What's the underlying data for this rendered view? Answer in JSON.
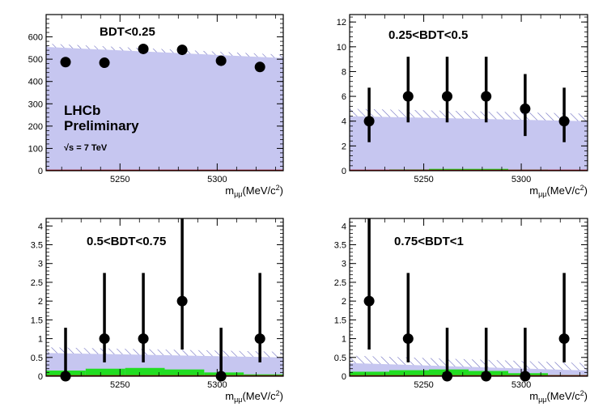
{
  "chart_data": [
    {
      "type": "scatter",
      "title": "BDT<0.25",
      "xlabel_main": "m",
      "xlabel_sub": "μμ",
      "xlabel_units": "(MeV/c",
      "xlabel_sup": "2",
      "xlabel_close": ")",
      "xlim": [
        5212,
        5334
      ],
      "ylim": [
        0,
        700
      ],
      "xticks": [
        5250,
        5300
      ],
      "yticks": [
        0,
        100,
        200,
        300,
        400,
        500,
        600
      ],
      "x": [
        5222,
        5242,
        5262,
        5282,
        5302,
        5322
      ],
      "y": [
        487,
        484,
        546,
        542,
        493,
        465
      ],
      "err_low": [
        0,
        0,
        0,
        0,
        0,
        0
      ],
      "err_high": [
        0,
        0,
        0,
        0,
        0,
        0
      ],
      "background_left": 555,
      "background_right": 505,
      "band_halfwidth": 15,
      "signal": [
        0,
        0,
        0,
        0,
        0,
        0
      ],
      "labels": {
        "experiment": "LHCb",
        "status": "Preliminary",
        "energy": "√s = 7 TeV"
      }
    },
    {
      "type": "scatter",
      "title": "0.25<BDT<0.5",
      "xlabel_main": "m",
      "xlabel_sub": "μμ",
      "xlabel_units": "(MeV/c",
      "xlabel_sup": "2",
      "xlabel_close": ")",
      "xlim": [
        5212,
        5334
      ],
      "ylim": [
        0,
        12.6
      ],
      "xticks": [
        5250,
        5300
      ],
      "yticks": [
        0,
        2,
        4,
        6,
        8,
        10,
        12
      ],
      "x": [
        5222,
        5242,
        5262,
        5282,
        5302,
        5322
      ],
      "y": [
        4,
        6,
        6,
        6,
        5,
        4
      ],
      "err_low": [
        1.7,
        2.1,
        2.1,
        2.1,
        2.2,
        1.7
      ],
      "err_high": [
        2.7,
        3.2,
        3.2,
        3.2,
        2.8,
        2.7
      ],
      "background_left": 4.4,
      "background_right": 4.0,
      "band_halfwidth": 0.6,
      "signal": [
        0.05,
        0.1,
        0.15,
        0.15,
        0.08,
        0.03
      ]
    },
    {
      "type": "scatter",
      "title": "0.5<BDT<0.75",
      "xlabel_main": "m",
      "xlabel_sub": "μμ",
      "xlabel_units": "(MeV/c",
      "xlabel_sup": "2",
      "xlabel_close": ")",
      "xlim": [
        5212,
        5334
      ],
      "ylim": [
        0,
        4.2
      ],
      "xticks": [
        5250,
        5300
      ],
      "yticks": [
        0,
        0.5,
        1,
        1.5,
        2,
        2.5,
        3,
        3.5,
        4
      ],
      "x": [
        5222,
        5242,
        5262,
        5282,
        5302,
        5322
      ],
      "y": [
        0,
        1,
        1,
        2,
        0,
        1
      ],
      "err_low": [
        0,
        0.63,
        0.63,
        1.29,
        0,
        0.63
      ],
      "err_high": [
        1.29,
        1.75,
        1.75,
        2.25,
        1.29,
        1.75
      ],
      "background_left": 0.62,
      "background_right": 0.5,
      "band_halfwidth": 0.15,
      "signal": [
        0.15,
        0.2,
        0.22,
        0.18,
        0.1,
        0.05
      ]
    },
    {
      "type": "scatter",
      "title": "0.75<BDT<1",
      "xlabel_main": "m",
      "xlabel_sub": "μμ",
      "xlabel_units": "(MeV/c",
      "xlabel_sup": "2",
      "xlabel_close": ")",
      "xlim": [
        5212,
        5334
      ],
      "ylim": [
        0,
        4.2
      ],
      "xticks": [
        5250,
        5300
      ],
      "yticks": [
        0,
        0.5,
        1,
        1.5,
        2,
        2.5,
        3,
        3.5,
        4
      ],
      "x": [
        5222,
        5242,
        5262,
        5282,
        5302,
        5322
      ],
      "y": [
        2,
        1,
        0,
        0,
        0,
        1
      ],
      "err_low": [
        1.29,
        0.63,
        0,
        0,
        0,
        0.63
      ],
      "err_high": [
        2.25,
        1.75,
        1.29,
        1.29,
        1.29,
        1.75
      ],
      "background_left": 0.35,
      "background_right": 0.15,
      "band_halfwidth": 0.2,
      "signal": [
        0.12,
        0.16,
        0.18,
        0.14,
        0.08,
        0.03
      ]
    }
  ],
  "colors": {
    "background_fill": "#c6c6f0",
    "hatch": "#6b6bbf",
    "signal": "#22dd22",
    "frame": "#000000",
    "baseline": "#990000",
    "points": "#000000"
  }
}
